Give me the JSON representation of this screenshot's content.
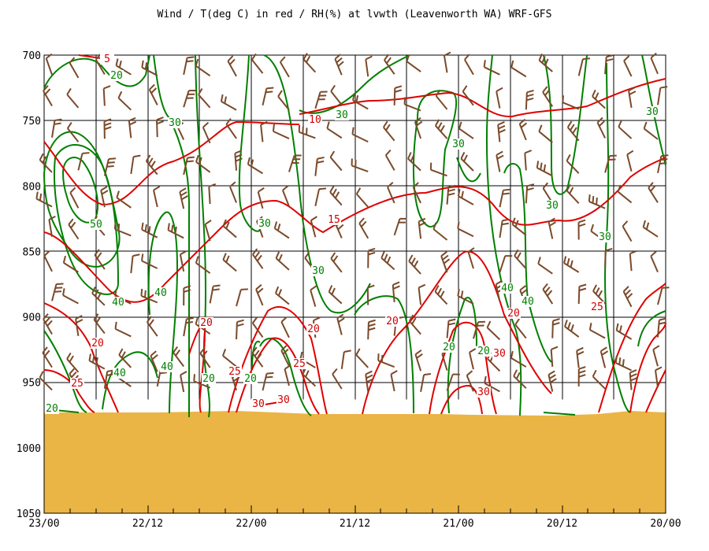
{
  "chart_data": {
    "type": "line",
    "title": "Wind / T(deg C) in red / RH(%) at lvwth (Leavenworth WA)  WRF-GFS",
    "y_axis": {
      "label": "",
      "ticks": [
        700,
        750,
        800,
        850,
        900,
        950,
        1000,
        1050
      ],
      "ylim": [
        700,
        1050
      ],
      "inverted": true
    },
    "x_axis": {
      "label": "",
      "ticks": [
        "23/00",
        "22/12",
        "22/00",
        "21/12",
        "21/00",
        "20/12",
        "20/00"
      ]
    },
    "grid": true,
    "colors": {
      "temperature": "#e00000",
      "rh": "#008000",
      "barb": "#7a4a2a",
      "ground": "#eab545"
    },
    "ground_pressure": 963,
    "series": [
      {
        "name": "T(deg C)",
        "kind": "temperature",
        "contour_labels": [
          "5",
          "10",
          "15",
          "20",
          "20",
          "20",
          "20",
          "20",
          "25",
          "25",
          "25",
          "25",
          "30",
          "30",
          "30",
          "30"
        ]
      },
      {
        "name": "RH(%)",
        "kind": "rh",
        "contour_labels": [
          "20",
          "20",
          "20",
          "20",
          "20",
          "20",
          "30",
          "30",
          "30",
          "30",
          "30",
          "30",
          "30",
          "30",
          "40",
          "40",
          "40",
          "40",
          "40",
          "40",
          "50"
        ]
      }
    ]
  }
}
